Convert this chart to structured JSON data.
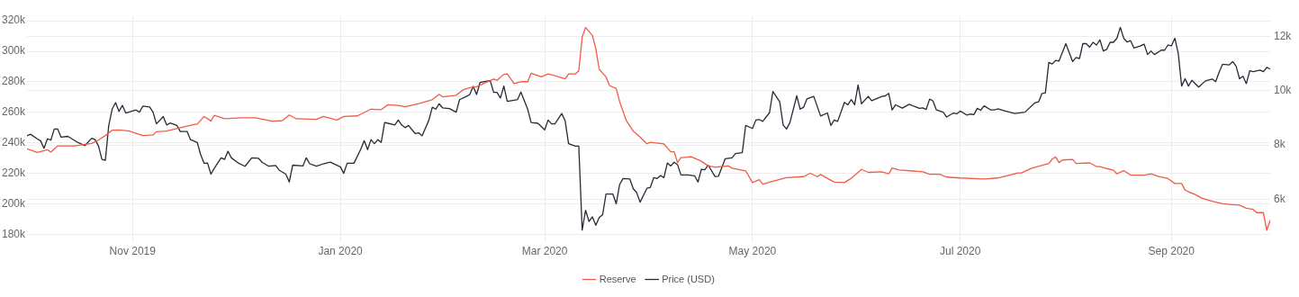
{
  "chart_data": {
    "type": "line",
    "xlim": [
      "2019-10-01",
      "2020-09-30"
    ],
    "xticks": [
      {
        "value": "2019-11-01",
        "label": "Nov 2019"
      },
      {
        "value": "2020-01-01",
        "label": "Jan 2020"
      },
      {
        "value": "2020-03-01",
        "label": "Mar 2020"
      },
      {
        "value": "2020-05-01",
        "label": "May 2020"
      },
      {
        "value": "2020-07-01",
        "label": "Jul 2020"
      },
      {
        "value": "2020-09-01",
        "label": "Sep 2020"
      }
    ],
    "ylim": [
      175000,
      323000
    ],
    "yticks": [
      {
        "value": 180000,
        "label": "180k"
      },
      {
        "value": 200000,
        "label": "200k"
      },
      {
        "value": 220000,
        "label": "220k"
      },
      {
        "value": 240000,
        "label": "240k"
      },
      {
        "value": 260000,
        "label": "260k"
      },
      {
        "value": 280000,
        "label": "280k"
      },
      {
        "value": 300000,
        "label": "300k"
      },
      {
        "value": 320000,
        "label": "320k"
      }
    ],
    "y2lim": [
      4430,
      12740
    ],
    "y2ticks": [
      {
        "value": 6000,
        "label": "6k"
      },
      {
        "value": 8000,
        "label": "8k"
      },
      {
        "value": 10000,
        "label": "10k"
      },
      {
        "value": 12000,
        "label": "12k"
      }
    ],
    "grid": true,
    "legend": "bottom",
    "series": [
      {
        "name": "Reserve",
        "color": "#f05c45",
        "x": [
          "2019-10-01",
          "2019-10-04",
          "2019-10-07",
          "2019-10-08",
          "2019-10-10",
          "2019-10-15",
          "2019-10-20",
          "2019-10-22",
          "2019-10-24",
          "2019-10-26",
          "2019-10-28",
          "2019-10-31",
          "2019-11-04",
          "2019-11-07",
          "2019-11-08",
          "2019-11-11",
          "2019-11-15",
          "2019-11-19",
          "2019-11-20",
          "2019-11-22",
          "2019-11-24",
          "2019-11-25",
          "2019-11-28",
          "2019-12-03",
          "2019-12-07",
          "2019-12-12",
          "2019-12-15",
          "2019-12-17",
          "2019-12-19",
          "2019-12-25",
          "2019-12-27",
          "2019-12-31",
          "2020-01-02",
          "2020-01-06",
          "2020-01-10",
          "2020-01-13",
          "2020-01-15",
          "2020-01-18",
          "2020-01-20",
          "2020-01-24",
          "2020-01-28",
          "2020-01-30",
          "2020-01-31",
          "2020-02-04",
          "2020-02-06",
          "2020-02-08",
          "2020-02-10",
          "2020-02-12",
          "2020-02-15",
          "2020-02-16",
          "2020-02-18",
          "2020-02-19",
          "2020-02-21",
          "2020-02-23",
          "2020-02-25",
          "2020-02-26",
          "2020-02-29",
          "2020-03-02",
          "2020-03-04",
          "2020-03-07",
          "2020-03-08",
          "2020-03-10",
          "2020-03-11",
          "2020-03-12",
          "2020-03-13",
          "2020-03-15",
          "2020-03-16",
          "2020-03-17",
          "2020-03-19",
          "2020-03-20",
          "2020-03-22",
          "2020-03-23",
          "2020-03-25",
          "2020-03-27",
          "2020-03-29",
          "2020-03-31",
          "2020-04-01",
          "2020-04-05",
          "2020-04-07",
          "2020-04-08",
          "2020-04-09",
          "2020-04-10",
          "2020-04-13",
          "2020-04-16",
          "2020-04-18",
          "2020-04-20",
          "2020-04-24",
          "2020-04-25",
          "2020-04-29",
          "2020-05-01",
          "2020-05-03",
          "2020-05-04",
          "2020-05-07",
          "2020-05-11",
          "2020-05-16",
          "2020-05-18",
          "2020-05-20",
          "2020-05-21",
          "2020-05-23",
          "2020-05-25",
          "2020-05-28",
          "2020-05-30",
          "2020-06-02",
          "2020-06-04",
          "2020-06-08",
          "2020-06-10",
          "2020-06-11",
          "2020-06-13",
          "2020-06-20",
          "2020-06-22",
          "2020-06-25",
          "2020-06-27",
          "2020-07-01",
          "2020-07-08",
          "2020-07-12",
          "2020-07-14",
          "2020-07-18",
          "2020-07-19",
          "2020-07-22",
          "2020-07-27",
          "2020-07-28",
          "2020-07-29",
          "2020-07-30",
          "2020-07-31",
          "2020-08-03",
          "2020-08-04",
          "2020-08-08",
          "2020-08-10",
          "2020-08-11",
          "2020-08-13",
          "2020-08-15",
          "2020-08-16",
          "2020-08-18",
          "2020-08-20",
          "2020-08-24",
          "2020-08-26",
          "2020-08-28",
          "2020-08-31",
          "2020-09-02",
          "2020-09-04",
          "2020-09-05",
          "2020-09-06",
          "2020-09-08",
          "2020-09-10",
          "2020-09-13",
          "2020-09-16",
          "2020-09-19",
          "2020-09-21",
          "2020-09-23",
          "2020-09-25",
          "2020-09-26",
          "2020-09-28",
          "2020-09-29",
          "2020-09-30"
        ],
        "values": [
          236100,
          233800,
          235500,
          234000,
          238000,
          238000,
          239600,
          241900,
          244800,
          248300,
          248500,
          247700,
          244800,
          245200,
          247300,
          247700,
          250000,
          252000,
          252300,
          257300,
          254400,
          258000,
          255800,
          256400,
          256400,
          254200,
          254600,
          258300,
          255800,
          255400,
          257300,
          255000,
          257300,
          257700,
          262100,
          261800,
          265000,
          264600,
          263700,
          265700,
          268300,
          271800,
          270200,
          271200,
          274700,
          276200,
          276800,
          278900,
          281800,
          281000,
          284900,
          285200,
          278900,
          280100,
          280100,
          285600,
          283300,
          285200,
          284000,
          282000,
          285200,
          285200,
          287200,
          309400,
          315600,
          310400,
          301700,
          288200,
          283300,
          277600,
          275600,
          267000,
          254400,
          247700,
          243800,
          239400,
          240400,
          239300,
          234200,
          234200,
          227100,
          230300,
          230900,
          228000,
          224900,
          224100,
          224900,
          223400,
          221700,
          214000,
          215900,
          213000,
          214900,
          217200,
          217900,
          220100,
          217900,
          219300,
          216800,
          214300,
          214000,
          216800,
          222600,
          220700,
          221100,
          219700,
          223600,
          222300,
          221100,
          219500,
          219500,
          217600,
          217000,
          216300,
          217000,
          218100,
          220300,
          220300,
          223400,
          226500,
          229400,
          230800,
          227100,
          228800,
          229200,
          226500,
          226900,
          224500,
          224500,
          223200,
          222100,
          219700,
          221900,
          218900,
          218900,
          219700,
          218100,
          216600,
          213400,
          213400,
          209100,
          208000,
          206200,
          203700,
          201800,
          200100,
          199600,
          199200,
          197200,
          196400,
          194300,
          194300,
          182700,
          189400
        ]
      },
      {
        "name": "Price (USD)",
        "color": "#262b35",
        "axis": "y2",
        "x": [
          "2019-10-01",
          "2019-10-02",
          "2019-10-04",
          "2019-10-05",
          "2019-10-06",
          "2019-10-07",
          "2019-10-08",
          "2019-10-09",
          "2019-10-10",
          "2019-10-11",
          "2019-10-13",
          "2019-10-16",
          "2019-10-18",
          "2019-10-20",
          "2019-10-21",
          "2019-10-22",
          "2019-10-23",
          "2019-10-24",
          "2019-10-25",
          "2019-10-26",
          "2019-10-27",
          "2019-10-28",
          "2019-10-29",
          "2019-10-30",
          "2019-11-02",
          "2019-11-03",
          "2019-11-04",
          "2019-11-06",
          "2019-11-07",
          "2019-11-08",
          "2019-11-10",
          "2019-11-11",
          "2019-11-12",
          "2019-11-14",
          "2019-11-15",
          "2019-11-17",
          "2019-11-18",
          "2019-11-20",
          "2019-11-21",
          "2019-11-22",
          "2019-11-23",
          "2019-11-24",
          "2019-11-25",
          "2019-11-27",
          "2019-11-28",
          "2019-11-29",
          "2019-11-30",
          "2019-12-02",
          "2019-12-04",
          "2019-12-06",
          "2019-12-08",
          "2019-12-09",
          "2019-12-11",
          "2019-12-13",
          "2019-12-14",
          "2019-12-16",
          "2019-12-17",
          "2019-12-18",
          "2019-12-21",
          "2019-12-22",
          "2019-12-23",
          "2019-12-25",
          "2019-12-27",
          "2019-12-29",
          "2020-01-01",
          "2020-01-02",
          "2020-01-03",
          "2020-01-05",
          "2020-01-07",
          "2020-01-08",
          "2020-01-09",
          "2020-01-10",
          "2020-01-11",
          "2020-01-12",
          "2020-01-13",
          "2020-01-14",
          "2020-01-15",
          "2020-01-17",
          "2020-01-18",
          "2020-01-19",
          "2020-01-20",
          "2020-01-21",
          "2020-01-23",
          "2020-01-24",
          "2020-01-25",
          "2020-01-27",
          "2020-01-28",
          "2020-01-29",
          "2020-01-30",
          "2020-01-31",
          "2020-02-02",
          "2020-02-04",
          "2020-02-05",
          "2020-02-07",
          "2020-02-08",
          "2020-02-09",
          "2020-02-10",
          "2020-02-11",
          "2020-02-13",
          "2020-02-14",
          "2020-02-15",
          "2020-02-16",
          "2020-02-17",
          "2020-02-18",
          "2020-02-19",
          "2020-02-21",
          "2020-02-22",
          "2020-02-23",
          "2020-02-25",
          "2020-02-26",
          "2020-02-28",
          "2020-03-01",
          "2020-03-02",
          "2020-03-03",
          "2020-03-04",
          "2020-03-06",
          "2020-03-07",
          "2020-03-08",
          "2020-03-10",
          "2020-03-11",
          "2020-03-12",
          "2020-03-13",
          "2020-03-14",
          "2020-03-15",
          "2020-03-16",
          "2020-03-17",
          "2020-03-18",
          "2020-03-19",
          "2020-03-21",
          "2020-03-22",
          "2020-03-23",
          "2020-03-24",
          "2020-03-26",
          "2020-03-27",
          "2020-03-28",
          "2020-03-29",
          "2020-03-31",
          "2020-04-01",
          "2020-04-02",
          "2020-04-03",
          "2020-04-04",
          "2020-04-05",
          "2020-04-06",
          "2020-04-07",
          "2020-04-08",
          "2020-04-09",
          "2020-04-10",
          "2020-04-12",
          "2020-04-14",
          "2020-04-15",
          "2020-04-16",
          "2020-04-17",
          "2020-04-18",
          "2020-04-20",
          "2020-04-21",
          "2020-04-23",
          "2020-04-25",
          "2020-04-26",
          "2020-04-28",
          "2020-04-29",
          "2020-05-01",
          "2020-05-02",
          "2020-05-03",
          "2020-05-04",
          "2020-05-06",
          "2020-05-07",
          "2020-05-09",
          "2020-05-10",
          "2020-05-11",
          "2020-05-12",
          "2020-05-14",
          "2020-05-15",
          "2020-05-16",
          "2020-05-17",
          "2020-05-19",
          "2020-05-21",
          "2020-05-23",
          "2020-05-24",
          "2020-05-25",
          "2020-05-26",
          "2020-05-28",
          "2020-05-29",
          "2020-05-30",
          "2020-05-31",
          "2020-06-01",
          "2020-06-02",
          "2020-06-04",
          "2020-06-05",
          "2020-06-08",
          "2020-06-09",
          "2020-06-10",
          "2020-06-11",
          "2020-06-12",
          "2020-06-14",
          "2020-06-16",
          "2020-06-19",
          "2020-06-20",
          "2020-06-21",
          "2020-06-22",
          "2020-06-23",
          "2020-06-24",
          "2020-06-26",
          "2020-06-27",
          "2020-06-29",
          "2020-06-30",
          "2020-07-01",
          "2020-07-03",
          "2020-07-04",
          "2020-07-05",
          "2020-07-06",
          "2020-07-07",
          "2020-07-08",
          "2020-07-10",
          "2020-07-11",
          "2020-07-12",
          "2020-07-14",
          "2020-07-17",
          "2020-07-20",
          "2020-07-23",
          "2020-07-24",
          "2020-07-25",
          "2020-07-26",
          "2020-07-27",
          "2020-07-28",
          "2020-07-29",
          "2020-07-30",
          "2020-08-01",
          "2020-08-03",
          "2020-08-04",
          "2020-08-05",
          "2020-08-06",
          "2020-08-07",
          "2020-08-08",
          "2020-08-09",
          "2020-08-10",
          "2020-08-11",
          "2020-08-12",
          "2020-08-13",
          "2020-08-14",
          "2020-08-15",
          "2020-08-16",
          "2020-08-17",
          "2020-08-18",
          "2020-08-19",
          "2020-08-20",
          "2020-08-21",
          "2020-08-23",
          "2020-08-24",
          "2020-08-25",
          "2020-08-26",
          "2020-08-27",
          "2020-08-29",
          "2020-08-30",
          "2020-08-31",
          "2020-09-01",
          "2020-09-02",
          "2020-09-03",
          "2020-09-04",
          "2020-09-05",
          "2020-09-06",
          "2020-09-07",
          "2020-09-09",
          "2020-09-11",
          "2020-09-13",
          "2020-09-14",
          "2020-09-15",
          "2020-09-16",
          "2020-09-18",
          "2020-09-19",
          "2020-09-20",
          "2020-09-21",
          "2020-09-22",
          "2020-09-23",
          "2020-09-24",
          "2020-09-25",
          "2020-09-27",
          "2020-09-28",
          "2020-09-29",
          "2020-09-30"
        ],
        "values": [
          8340,
          8400,
          8230,
          8150,
          7880,
          8230,
          8180,
          8590,
          8590,
          8290,
          8320,
          8090,
          7980,
          8250,
          8200,
          7960,
          7470,
          7440,
          8720,
          9320,
          9560,
          9240,
          9460,
          9180,
          9290,
          9210,
          9430,
          9400,
          9210,
          8780,
          9050,
          8740,
          8810,
          8720,
          8500,
          8500,
          8200,
          8090,
          7640,
          7330,
          7340,
          6930,
          7150,
          7530,
          7470,
          7770,
          7530,
          7340,
          7220,
          7530,
          7510,
          7370,
          7220,
          7250,
          7080,
          6930,
          6640,
          7260,
          7230,
          7530,
          7310,
          7220,
          7310,
          7370,
          7200,
          6960,
          7330,
          7330,
          7850,
          8160,
          7830,
          8200,
          8050,
          8200,
          8100,
          8830,
          8800,
          8740,
          8920,
          8740,
          8640,
          8720,
          8420,
          8450,
          8340,
          8920,
          9390,
          9320,
          9520,
          9370,
          9340,
          9210,
          9670,
          9790,
          9860,
          10160,
          9860,
          10300,
          10350,
          10370,
          9940,
          9940,
          9730,
          10170,
          9610,
          9650,
          9670,
          9950,
          9320,
          8830,
          8800,
          8560,
          8920,
          8780,
          8780,
          9160,
          8890,
          8050,
          7960,
          7960,
          4870,
          5600,
          5190,
          5360,
          5050,
          5330,
          5440,
          6200,
          6200,
          5840,
          6550,
          6770,
          6750,
          6390,
          6250,
          5900,
          6410,
          6440,
          6800,
          6770,
          6880,
          6800,
          7340,
          7230,
          7370,
          7280,
          6900,
          6900,
          6870,
          6640,
          7110,
          7090,
          7260,
          6840,
          6850,
          7500,
          7530,
          7690,
          7720,
          8720,
          8610,
          8920,
          8940,
          8870,
          9190,
          9970,
          9590,
          8740,
          8590,
          8830,
          9810,
          9320,
          9390,
          9700,
          9790,
          9070,
          9180,
          8720,
          8920,
          8870,
          9570,
          9480,
          9670,
          9480,
          10210,
          9520,
          9790,
          9630,
          9790,
          9810,
          9900,
          9290,
          9480,
          9360,
          9500,
          9350,
          9370,
          9310,
          9690,
          9620,
          9290,
          9210,
          9030,
          9180,
          9150,
          9250,
          9100,
          9140,
          9120,
          9350,
          9280,
          9440,
          9290,
          9290,
          9330,
          9260,
          9160,
          9210,
          9560,
          9590,
          9900,
          9920,
          11040,
          10980,
          11110,
          11090,
          11730,
          11070,
          11220,
          11180,
          11730,
          11730,
          11600,
          11780,
          11680,
          11870,
          11460,
          11520,
          11780,
          11780,
          11930,
          12330,
          11930,
          11790,
          11840,
          11570,
          11650,
          11710,
          11330,
          11460,
          11330,
          11490,
          11490,
          11680,
          11650,
          11930,
          11380,
          10170,
          10440,
          10170,
          10380,
          10130,
          10360,
          10430,
          10330,
          10680,
          10970,
          10950,
          11070,
          10900,
          10440,
          10530,
          10260,
          10730,
          10700,
          10760,
          10700,
          10860,
          10800
        ]
      }
    ]
  }
}
